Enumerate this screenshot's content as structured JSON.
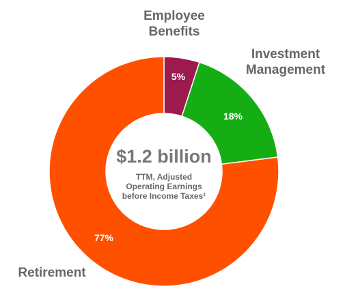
{
  "chart_data": {
    "type": "donut",
    "center_title": "$1.2 billion",
    "center_subtitle": "TTM, Adjusted Operating Earnings before Income Taxes¹",
    "categories": [
      "Employee Benefits",
      "Investment Management",
      "Retirement"
    ],
    "values": [
      5,
      18,
      77
    ],
    "value_labels": [
      "5%",
      "18%",
      "77%"
    ],
    "colors": [
      "#9c1a4e",
      "#14ad14",
      "#ff5000"
    ]
  }
}
